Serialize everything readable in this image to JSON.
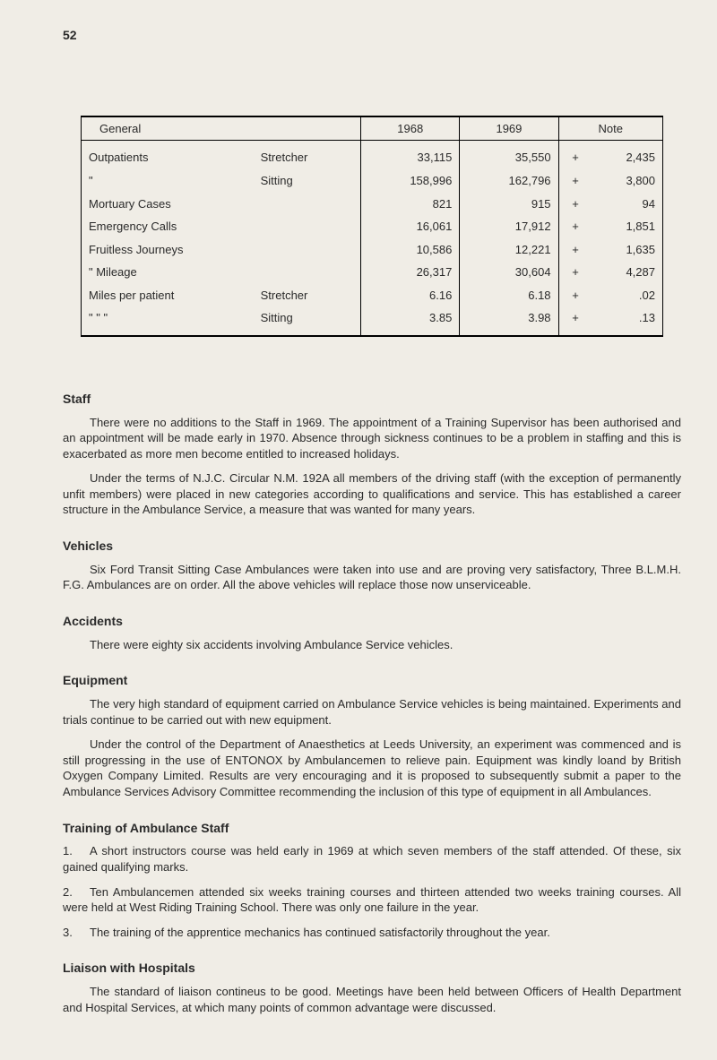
{
  "page_number": "52",
  "table": {
    "headers": {
      "c1": "General",
      "c2": "1968",
      "c3": "1969",
      "c4": "Note"
    },
    "rows": [
      {
        "label": "Outpatients",
        "sub": "Stretcher",
        "y68": "33,115",
        "y69": "35,550",
        "sign": "+",
        "note": "2,435"
      },
      {
        "label": "\"",
        "sub": "Sitting",
        "y68": "158,996",
        "y69": "162,796",
        "sign": "+",
        "note": "3,800"
      },
      {
        "label": "Mortuary Cases",
        "sub": "",
        "y68": "821",
        "y69": "915",
        "sign": "+",
        "note": "94"
      },
      {
        "label": "Emergency Calls",
        "sub": "",
        "y68": "16,061",
        "y69": "17,912",
        "sign": "+",
        "note": "1,851"
      },
      {
        "label": "Fruitless Journeys",
        "sub": "",
        "y68": "10,586",
        "y69": "12,221",
        "sign": "+",
        "note": "1,635"
      },
      {
        "label": "\"      Mileage",
        "sub": "",
        "y68": "26,317",
        "y69": "30,604",
        "sign": "+",
        "note": "4,287"
      },
      {
        "label": "Miles per patient",
        "sub": "Stretcher",
        "y68": "6.16",
        "y69": "6.18",
        "sign": "+",
        "note": ".02"
      },
      {
        "label": "\"   \"      \"",
        "sub": "Sitting",
        "y68": "3.85",
        "y69": "3.98",
        "sign": "+",
        "note": ".13"
      }
    ]
  },
  "sections": {
    "staff": {
      "heading": "Staff",
      "p1": "There were no additions to the Staff in 1969. The appointment of a Training Supervisor has been authorised and an appointment will be made early in 1970. Absence through sickness continues to be a problem in staffing and this is exacerbated as more men become entitled to increased holidays.",
      "p2": "Under the terms of N.J.C. Circular N.M. 192A all members of the driving staff (with the exception of permanently unfit members) were placed in new categories according to qualifications and service. This has established a career structure in the Ambulance Service, a measure that was wanted for many years."
    },
    "vehicles": {
      "heading": "Vehicles",
      "p1": "Six Ford Transit Sitting Case Ambulances were taken into use and are proving very satisfactory, Three B.L.M.H. F.G. Ambulances are on order. All the above vehicles will replace those now unserviceable."
    },
    "accidents": {
      "heading": "Accidents",
      "p1": "There were eighty six accidents involving Ambulance Service vehicles."
    },
    "equipment": {
      "heading": "Equipment",
      "p1": "The very high standard of equipment carried on Ambulance Service vehicles is being maintained. Experiments and trials continue to be carried out with new equipment.",
      "p2": "Under the control of the Department of Anaesthetics at Leeds University, an experiment was commenced and is still progressing in the use of ENTONOX by Ambulancemen to relieve pain. Equipment was kindly loand by British Oxygen Company Limited. Results are very encouraging and it is proposed to subsequently submit a paper to the Ambulance Services Advisory Committee recommending the inclusion of this type of equipment in all Ambulances."
    },
    "training": {
      "heading": "Training of Ambulance Staff",
      "i1": "A short instructors course was held early in 1969 at which seven members of the staff attended. Of these, six gained qualifying marks.",
      "i2": "Ten Ambulancemen attended six weeks training courses and thirteen attended two weeks training courses. All were held at West Riding Training School. There was only one failure in the year.",
      "i3": "The training of the apprentice mechanics has continued satisfactorily throughout the year."
    },
    "liaison": {
      "heading": "Liaison with Hospitals",
      "p1": "The standard of liaison contineus to be good. Meetings have been held between Officers of Health Department and Hospital Services, at which many points of common advantage were discussed."
    }
  },
  "numbers": {
    "n1": "1.",
    "n2": "2.",
    "n3": "3."
  }
}
